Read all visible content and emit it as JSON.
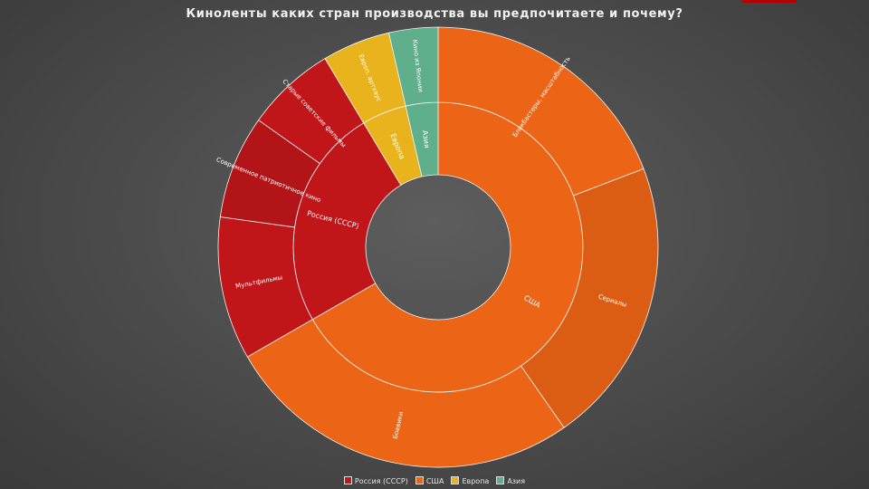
{
  "title": "Киноленты каких стран производства вы предпочитаете и почему?",
  "colors": {
    "Россия (СССР)": "#c0161a",
    "США": "#ec6415",
    "Европа": "#e8b31c",
    "Азия": "#5fae8c"
  },
  "chart_data": {
    "type": "sunburst",
    "title": "Киноленты каких стран производства вы предпочитаете и почему?",
    "legend_position": "bottom",
    "legend": [
      "Россия (СССР)",
      "США",
      "Европа",
      "Азия"
    ],
    "inner": [
      {
        "name": "США",
        "value": 0.667
      },
      {
        "name": "Россия (СССР)",
        "value": 0.247
      },
      {
        "name": "Европа",
        "value": 0.05
      },
      {
        "name": "Азия",
        "value": 0.036
      }
    ],
    "outer": [
      {
        "name": "Блокбастеры, масштабность",
        "parent": "США",
        "value": 0.192
      },
      {
        "name": "Сериалы",
        "parent": "США",
        "value": 0.211
      },
      {
        "name": "Боевики",
        "parent": "США",
        "value": 0.264
      },
      {
        "name": "Мультфильмы",
        "parent": "Россия (СССР)",
        "value": 0.105
      },
      {
        "name": "Современное патриотичное кино",
        "parent": "Россия (СССР)",
        "value": 0.076
      },
      {
        "name": "Старые советские фильмы",
        "parent": "Россия (СССР)",
        "value": 0.066
      },
      {
        "name": "Европ. артхаус",
        "parent": "Европа",
        "value": 0.05
      },
      {
        "name": "Кино из Японии",
        "parent": "Азия",
        "value": 0.036
      }
    ]
  }
}
